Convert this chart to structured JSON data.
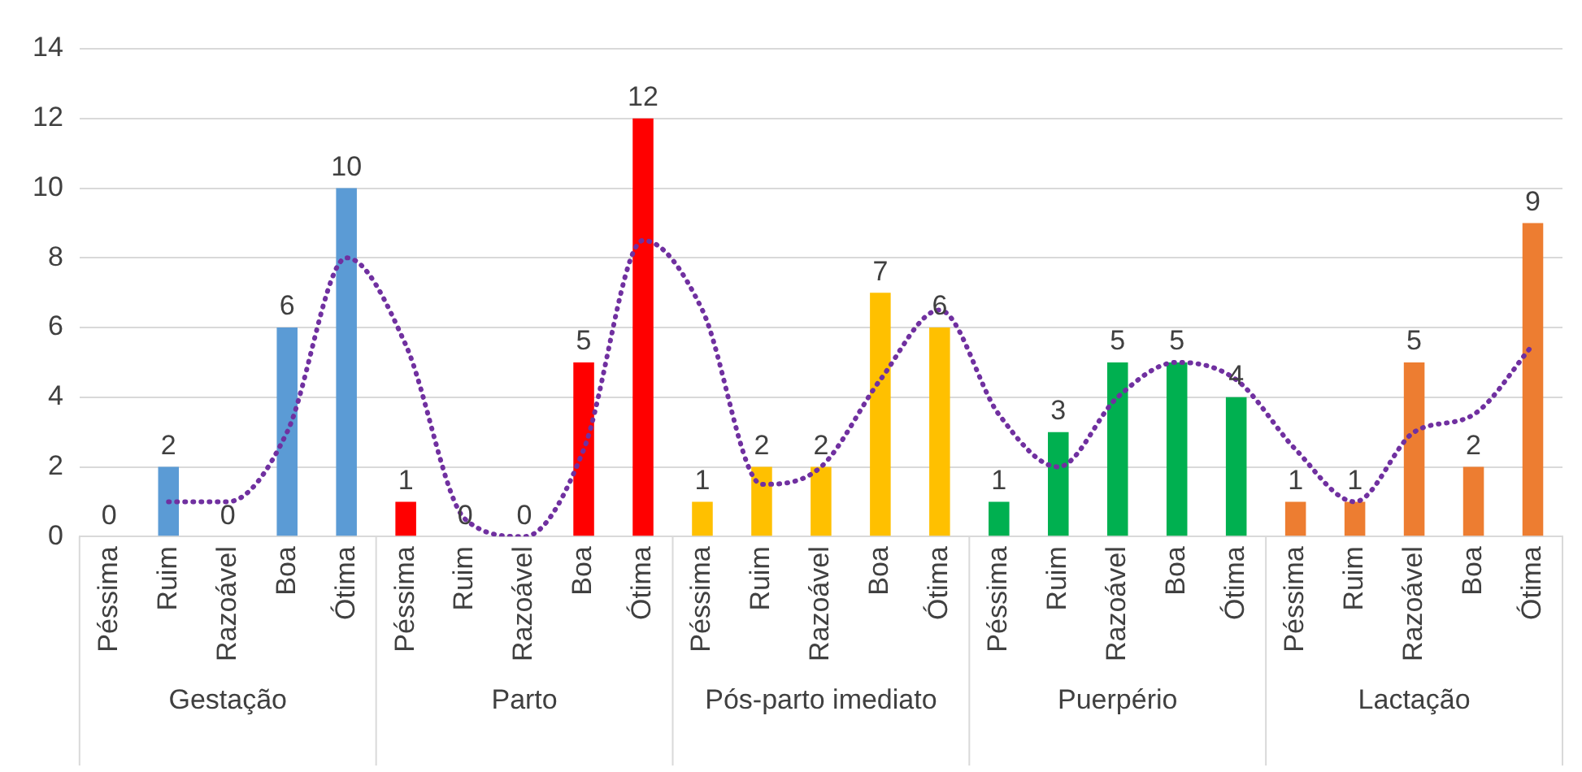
{
  "chart_data": {
    "type": "bar",
    "categories": [
      "Péssima",
      "Ruim",
      "Razoável",
      "Boa",
      "Ótima",
      "Péssima",
      "Ruim",
      "Razoável",
      "Boa",
      "Ótima",
      "Péssima",
      "Ruim",
      "Razoável",
      "Boa",
      "Ótima",
      "Péssima",
      "Ruim",
      "Razoável",
      "Boa",
      "Ótima",
      "Péssima",
      "Ruim",
      "Razoável",
      "Boa",
      "Ótima"
    ],
    "series": [
      {
        "values": [
          0,
          2,
          0,
          6,
          10,
          1,
          0,
          0,
          5,
          12,
          1,
          2,
          2,
          7,
          6,
          1,
          3,
          5,
          5,
          4,
          1,
          1,
          5,
          2,
          9
        ],
        "colors": [
          "#5b9bd5",
          "#5b9bd5",
          "#5b9bd5",
          "#5b9bd5",
          "#5b9bd5",
          "#ff0000",
          "#ff0000",
          "#ff0000",
          "#ff0000",
          "#ff0000",
          "#ffc000",
          "#ffc000",
          "#ffc000",
          "#ffc000",
          "#ffc000",
          "#00b050",
          "#00b050",
          "#00b050",
          "#00b050",
          "#00b050",
          "#ed7d31",
          "#ed7d31",
          "#ed7d31",
          "#ed7d31",
          "#ed7d31"
        ],
        "value_labels": [
          "0",
          "2",
          "0",
          "6",
          "10",
          "1",
          "0",
          "0",
          "5",
          "12",
          "1",
          "2",
          "2",
          "7",
          "6",
          "1",
          "3",
          "5",
          "5",
          "4",
          "1",
          "1",
          "5",
          "2",
          "9"
        ]
      },
      {
        "type": "line",
        "color": "#7030a0",
        "line_style": "dotted",
        "marker": "none",
        "values": [
          null,
          1,
          1,
          3,
          8,
          5.5,
          0.5,
          0,
          2.5,
          8.5,
          6.5,
          1.5,
          2,
          4.5,
          6.5,
          3.5,
          2,
          4,
          5,
          4.5,
          2.5,
          1,
          3,
          3.5,
          5.5
        ]
      }
    ],
    "annotations": [
      "Gestação",
      "Parto",
      "Pós-parto imediato",
      "Puerpério",
      "Lactação"
    ],
    "ylim": [
      0,
      14
    ],
    "yticks": [
      0,
      2,
      4,
      6,
      8,
      10,
      12,
      14
    ],
    "grid": "y",
    "legend": false
  }
}
